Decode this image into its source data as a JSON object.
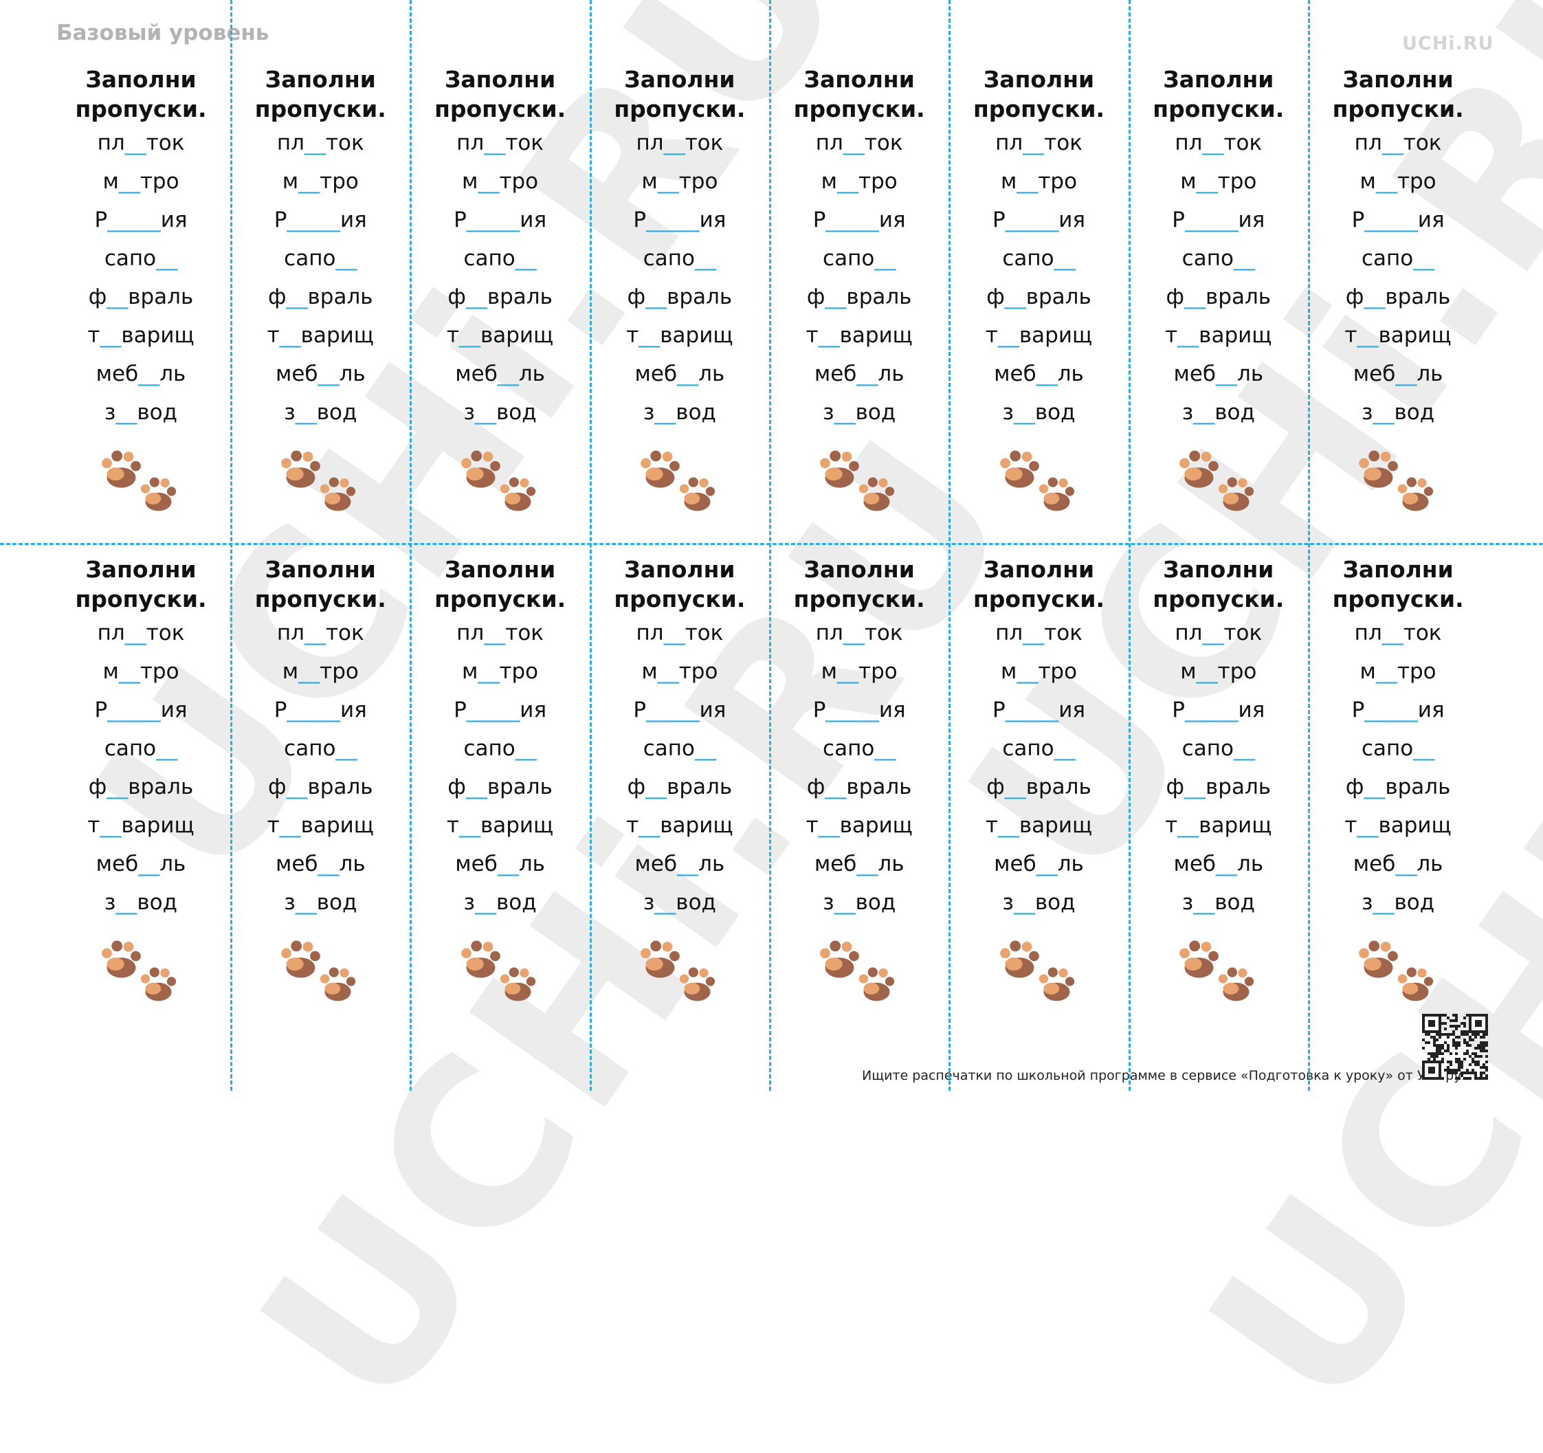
{
  "header": {
    "level": "Базовый уровень",
    "logo": "UCHi.RU",
    "watermark": "UCHi.RU"
  },
  "cards": [
    {
      "title": "Заполни пропуски.",
      "words": [
        "пл__ток",
        "м__тро",
        "Р_____ия",
        "сапо__",
        "ф__враль",
        "т__варищ",
        "меб__ль",
        "з__вод"
      ]
    },
    {
      "title": "Заполни пропуски.",
      "words": [
        "пл__ток",
        "м__тро",
        "Р_____ия",
        "сапо__",
        "ф__враль",
        "т__варищ",
        "меб__ль",
        "з__вод"
      ]
    },
    {
      "title": "Заполни пропуски.",
      "words": [
        "пл__ток",
        "м__тро",
        "Р_____ия",
        "сапо__",
        "ф__враль",
        "т__варищ",
        "меб__ль",
        "з__вод"
      ]
    },
    {
      "title": "Заполни пропуски.",
      "words": [
        "пл__ток",
        "м__тро",
        "Р_____ия",
        "сапо__",
        "ф__враль",
        "т__варищ",
        "меб__ль",
        "з__вод"
      ]
    },
    {
      "title": "Заполни пропуски.",
      "words": [
        "пл__ток",
        "м__тро",
        "Р_____ия",
        "сапо__",
        "ф__враль",
        "т__варищ",
        "меб__ль",
        "з__вод"
      ]
    },
    {
      "title": "Заполни пропуски.",
      "words": [
        "пл__ток",
        "м__тро",
        "Р_____ия",
        "сапо__",
        "ф__враль",
        "т__варищ",
        "меб__ль",
        "з__вод"
      ]
    },
    {
      "title": "Заполни пропуски.",
      "words": [
        "пл__ток",
        "м__тро",
        "Р_____ия",
        "сапо__",
        "ф__враль",
        "т__варищ",
        "меб__ль",
        "з__вод"
      ]
    },
    {
      "title": "Заполни пропуски.",
      "words": [
        "пл__ток",
        "м__тро",
        "Р_____ия",
        "сапо__",
        "ф__враль",
        "т__варищ",
        "меб__ль",
        "з__вод"
      ]
    },
    {
      "title": "Заполни пропуски.",
      "words": [
        "пл__ток",
        "м__тро",
        "Р_____ия",
        "сапо__",
        "ф__враль",
        "т__варищ",
        "меб__ль",
        "з__вод"
      ]
    },
    {
      "title": "Заполни пропуски.",
      "words": [
        "пл__ток",
        "м__тро",
        "Р_____ия",
        "сапо__",
        "ф__враль",
        "т__варищ",
        "меб__ль",
        "з__вод"
      ]
    },
    {
      "title": "Заполни пропуски.",
      "words": [
        "пл__ток",
        "м__тро",
        "Р_____ия",
        "сапо__",
        "ф__враль",
        "т__варищ",
        "меб__ль",
        "з__вод"
      ]
    },
    {
      "title": "Заполни пропуски.",
      "words": [
        "пл__ток",
        "м__тро",
        "Р_____ия",
        "сапо__",
        "ф__враль",
        "т__варищ",
        "меб__ль",
        "з__вод"
      ]
    },
    {
      "title": "Заполни пропуски.",
      "words": [
        "пл__ток",
        "м__тро",
        "Р_____ия",
        "сапо__",
        "ф__враль",
        "т__варищ",
        "меб__ль",
        "з__вод"
      ]
    },
    {
      "title": "Заполни пропуски.",
      "words": [
        "пл__ток",
        "м__тро",
        "Р_____ия",
        "сапо__",
        "ф__враль",
        "т__варищ",
        "меб__ль",
        "з__вод"
      ]
    },
    {
      "title": "Заполни пропуски.",
      "words": [
        "пл__ток",
        "м__тро",
        "Р_____ия",
        "сапо__",
        "ф__враль",
        "т__варищ",
        "меб__ль",
        "з__вод"
      ]
    },
    {
      "title": "Заполни пропуски.",
      "words": [
        "пл__ток",
        "м__тро",
        "Р_____ия",
        "сапо__",
        "ф__враль",
        "т__варищ",
        "меб__ль",
        "з__вод"
      ]
    }
  ],
  "footer": {
    "text": "Ищите распечатки по школьной программе в сервисе «Подготовка к уроку» от Учи.ру."
  }
}
